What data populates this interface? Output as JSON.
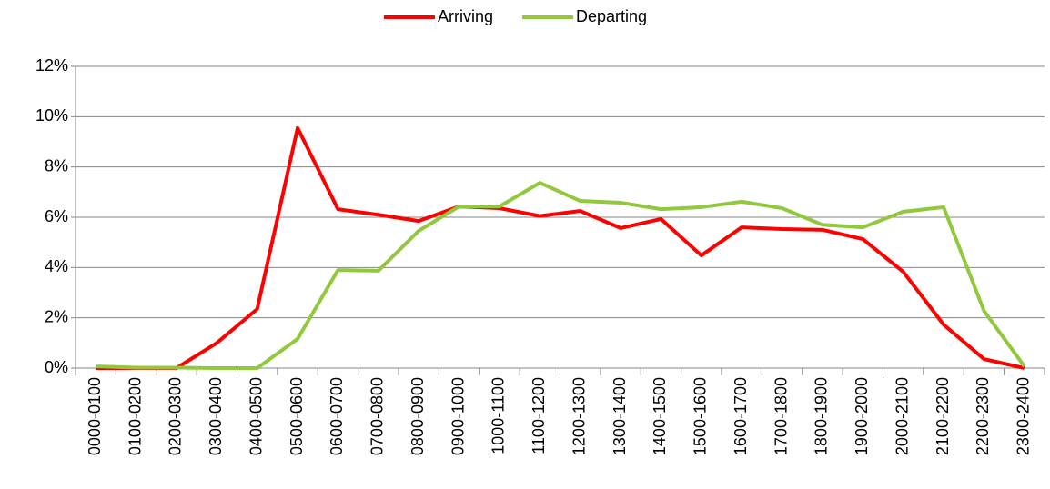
{
  "chart_data": {
    "type": "line",
    "categories": [
      "0000-0100",
      "0100-0200",
      "0200-0300",
      "0300-0400",
      "0400-0500",
      "0500-0600",
      "0600-0700",
      "0700-0800",
      "0800-0900",
      "0900-1000",
      "1000-1100",
      "1100-1200",
      "1200-1300",
      "1300-1400",
      "1400-1500",
      "1500-1600",
      "1600-1700",
      "1700-1800",
      "1800-1900",
      "1900-2000",
      "2000-2100",
      "2100-2200",
      "2200-2300",
      "2300-2400"
    ],
    "series": [
      {
        "name": "Arriving",
        "color": "#ff0000",
        "values": [
          0,
          0,
          0,
          1.0,
          2.35,
          9.55,
          6.32,
          6.1,
          5.85,
          6.43,
          6.36,
          6.05,
          6.25,
          5.57,
          5.93,
          4.48,
          5.6,
          5.53,
          5.5,
          5.13,
          3.83,
          1.73,
          0.36,
          0
        ]
      },
      {
        "name": "Departing",
        "color": "#92c83e",
        "values": [
          0.07,
          0.02,
          0.02,
          0,
          0,
          1.16,
          3.9,
          3.87,
          5.46,
          6.43,
          6.43,
          7.37,
          6.65,
          6.58,
          6.32,
          6.4,
          6.62,
          6.36,
          5.7,
          5.6,
          6.22,
          6.4,
          2.28,
          0.07
        ]
      }
    ],
    "ylim": [
      0,
      12
    ],
    "yticks": [
      {
        "value": 0,
        "label": "0%"
      },
      {
        "value": 2,
        "label": "2%"
      },
      {
        "value": 4,
        "label": "4%"
      },
      {
        "value": 6,
        "label": "6%"
      },
      {
        "value": 8,
        "label": "8%"
      },
      {
        "value": 10,
        "label": "10%"
      },
      {
        "value": 12,
        "label": "12%"
      }
    ],
    "grid": true,
    "legend": "top"
  }
}
